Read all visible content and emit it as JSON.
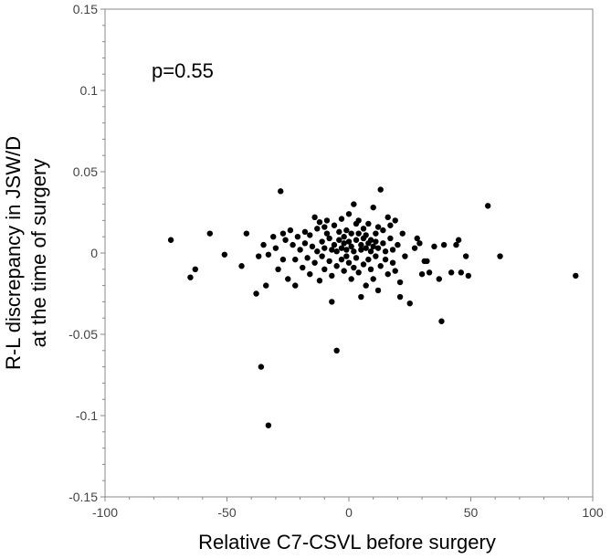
{
  "chart_data": {
    "type": "scatter",
    "title": "",
    "xlabel": "Relative C7-CSVL before surgery",
    "ylabel_lines": [
      "R-L discrepancy in JSW/D",
      "at the  time of surgery"
    ],
    "annotation": "p=0.55",
    "xlim": [
      -100,
      100
    ],
    "ylim": [
      -0.15,
      0.15
    ],
    "x_ticks": [
      -100,
      -50,
      0,
      50,
      100
    ],
    "y_ticks": [
      -0.15,
      -0.1,
      -0.05,
      0,
      0.05,
      0.1,
      0.15
    ],
    "x_tick_labels": [
      "-100",
      "-50",
      "0",
      "50",
      "100"
    ],
    "y_tick_labels": [
      "-0.15",
      "-0.1",
      "-0.05",
      "0",
      "0.05",
      "0.1",
      "0.15"
    ],
    "grid": false,
    "colors": {
      "point": "#000000",
      "axis": "#888888",
      "text": "#000000",
      "tick_text": "#444444"
    },
    "points": [
      [
        -73,
        0.008
      ],
      [
        -65,
        -0.015
      ],
      [
        -63,
        -0.01
      ],
      [
        -57,
        0.012
      ],
      [
        -51,
        -0.001
      ],
      [
        -44,
        -0.008
      ],
      [
        -42,
        0.012
      ],
      [
        -38,
        -0.025
      ],
      [
        -37,
        -0.002
      ],
      [
        -36,
        -0.07
      ],
      [
        -35,
        0.005
      ],
      [
        -34,
        -0.02
      ],
      [
        -33,
        -0.106
      ],
      [
        -33,
        -0.001
      ],
      [
        -31,
        0.01
      ],
      [
        -30,
        0.003
      ],
      [
        -29,
        -0.01
      ],
      [
        -28,
        0.038
      ],
      [
        -27,
        0.012
      ],
      [
        -27,
        -0.004
      ],
      [
        -26,
        0.008
      ],
      [
        -25,
        -0.016
      ],
      [
        -24,
        0.014
      ],
      [
        -23,
        0.005
      ],
      [
        -22,
        -0.004
      ],
      [
        -22,
        -0.02
      ],
      [
        -21,
        0.01
      ],
      [
        -20,
        0.002
      ],
      [
        -19,
        -0.009
      ],
      [
        -18,
        0.013
      ],
      [
        -18,
        0.006
      ],
      [
        -17,
        -0.003
      ],
      [
        -16,
        0.011
      ],
      [
        -16,
        -0.013
      ],
      [
        -15,
        0.004
      ],
      [
        -14,
        0.022
      ],
      [
        -14,
        -0.006
      ],
      [
        -13,
        0.015
      ],
      [
        -13,
        0.001
      ],
      [
        -12,
        0.019
      ],
      [
        -12,
        -0.017
      ],
      [
        -11,
        0.007
      ],
      [
        -11,
        -0.002
      ],
      [
        -10,
        0.016
      ],
      [
        -10,
        0.003
      ],
      [
        -10,
        -0.01
      ],
      [
        -9,
        0.012
      ],
      [
        -9,
        0.02
      ],
      [
        -8,
        -0.005
      ],
      [
        -8,
        0.009
      ],
      [
        -7,
        -0.03
      ],
      [
        -7,
        0.002
      ],
      [
        -7,
        -0.014
      ],
      [
        -6,
        0.017
      ],
      [
        -6,
        0.005
      ],
      [
        -5,
        -0.06
      ],
      [
        -5,
        0.001
      ],
      [
        -5,
        -0.008
      ],
      [
        -4,
        0.013
      ],
      [
        -4,
        0.008
      ],
      [
        -3,
        0.003
      ],
      [
        -3,
        -0.004
      ],
      [
        -3,
        0.021
      ],
      [
        -2,
        0.01
      ],
      [
        -2,
        -0.011
      ],
      [
        -2,
        0.006
      ],
      [
        -1,
        0.002
      ],
      [
        -1,
        0.014
      ],
      [
        -1,
        -0.002
      ],
      [
        0,
        0.007
      ],
      [
        0,
        -0.006
      ],
      [
        0,
        0.024
      ],
      [
        1,
        0.004
      ],
      [
        1,
        -0.016
      ],
      [
        1,
        0.012
      ],
      [
        2,
        0.03
      ],
      [
        2,
        0.001
      ],
      [
        2,
        -0.009
      ],
      [
        3,
        0.018
      ],
      [
        3,
        0.008
      ],
      [
        3,
        -0.003
      ],
      [
        4,
        0.012
      ],
      [
        4,
        -0.012
      ],
      [
        4,
        0.02
      ],
      [
        5,
        0.005
      ],
      [
        5,
        -0.027
      ],
      [
        5,
        0.002
      ],
      [
        6,
        0.015
      ],
      [
        6,
        -0.007
      ],
      [
        6,
        0.009
      ],
      [
        7,
        0.003
      ],
      [
        7,
        -0.02
      ],
      [
        7,
        0.011
      ],
      [
        8,
        0.006
      ],
      [
        8,
        -0.004
      ],
      [
        8,
        0.018
      ],
      [
        9,
        0.001
      ],
      [
        9,
        -0.01
      ],
      [
        9,
        0.008
      ],
      [
        10,
        0.028
      ],
      [
        10,
        -0.016
      ],
      [
        10,
        0.004
      ],
      [
        11,
        0.012
      ],
      [
        11,
        -0.002
      ],
      [
        11,
        0.007
      ],
      [
        12,
        0.016
      ],
      [
        12,
        -0.023
      ],
      [
        12,
        0.003
      ],
      [
        13,
        0.039
      ],
      [
        13,
        -0.008
      ],
      [
        14,
        0.006
      ],
      [
        14,
        0.014
      ],
      [
        15,
        -0.004
      ],
      [
        15,
        0.001
      ],
      [
        16,
        0.022
      ],
      [
        16,
        -0.013
      ],
      [
        17,
        0.009
      ],
      [
        17,
        0.017
      ],
      [
        18,
        -0.006
      ],
      [
        18,
        0.002
      ],
      [
        19,
        0.02
      ],
      [
        19,
        -0.011
      ],
      [
        20,
        0.005
      ],
      [
        21,
        -0.018
      ],
      [
        21,
        -0.027
      ],
      [
        22,
        0.012
      ],
      [
        23,
        -0.002
      ],
      [
        25,
        -0.031
      ],
      [
        27,
        0.003
      ],
      [
        28,
        0.009
      ],
      [
        29,
        0.006
      ],
      [
        30,
        -0.013
      ],
      [
        31,
        -0.005
      ],
      [
        32,
        -0.005
      ],
      [
        33,
        -0.012
      ],
      [
        35,
        0.004
      ],
      [
        37,
        -0.016
      ],
      [
        38,
        -0.042
      ],
      [
        39,
        0.005
      ],
      [
        42,
        -0.012
      ],
      [
        44,
        0.005
      ],
      [
        45,
        0.008
      ],
      [
        46,
        -0.012
      ],
      [
        48,
        -0.002
      ],
      [
        49,
        -0.014
      ],
      [
        57,
        0.029
      ],
      [
        62,
        -0.002
      ],
      [
        93,
        -0.014
      ]
    ]
  }
}
